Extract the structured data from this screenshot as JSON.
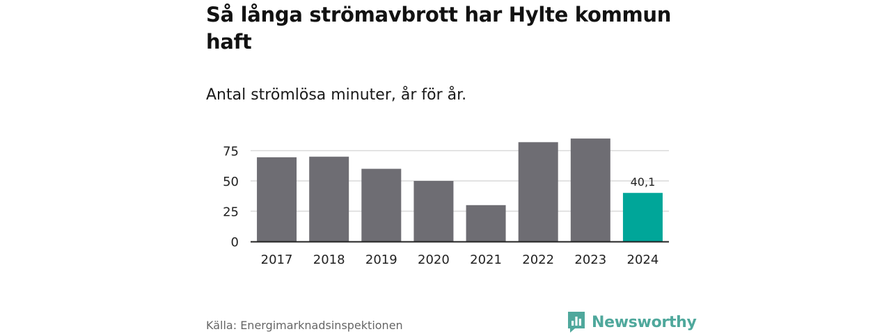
{
  "header": {
    "title": "Så långa strömavbrott har Hylte kommun haft",
    "subtitle": "Antal strömlösa minuter, år för år."
  },
  "footer": {
    "source": "Källa: Energimarknadsinspektionen",
    "brand": "Newsworthy"
  },
  "colors": {
    "bar": "#6e6d73",
    "highlight": "#00a699",
    "grid": "#d9d9d9",
    "axis": "#222222",
    "brand": "#4fa89c"
  },
  "icons": {
    "brand_logo": "bar-chart-speech-bubble-icon"
  },
  "chart_data": {
    "type": "bar",
    "categories": [
      "2017",
      "2018",
      "2019",
      "2020",
      "2021",
      "2022",
      "2023",
      "2024"
    ],
    "values": [
      69.5,
      70,
      60,
      50,
      30,
      82,
      85,
      40.1
    ],
    "highlight_index": 7,
    "data_labels": {
      "7": "40,1"
    },
    "yticks": [
      0,
      25,
      50,
      75
    ],
    "ylim": [
      0,
      85
    ],
    "grid": true,
    "legend": "none"
  }
}
